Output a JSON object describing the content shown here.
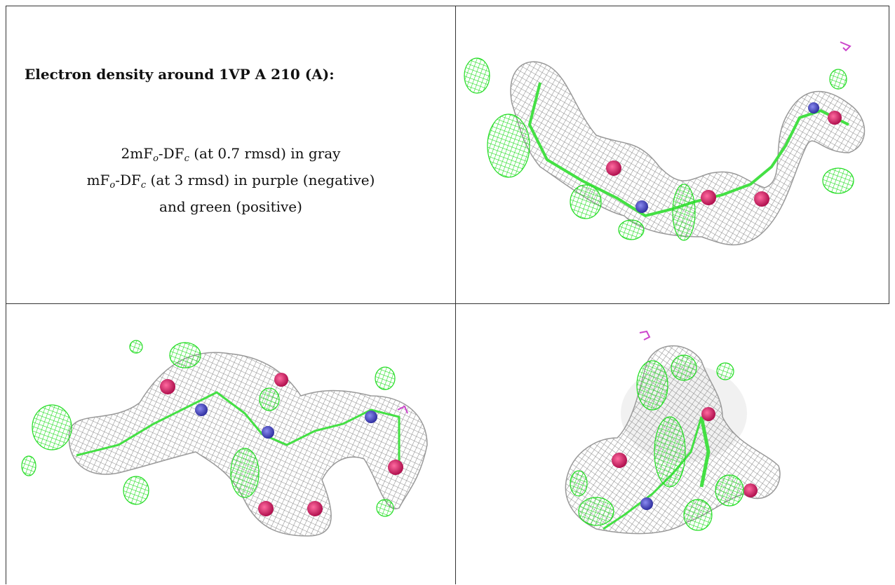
{
  "title": "Electron density around 1VP A 210 (A):",
  "legend": {
    "line1": {
      "prefix": "2mF",
      "sub1": "o",
      "mid": "-DF",
      "sub2": "c",
      "suffix": " (at 0.7 rmsd) in gray"
    },
    "line2": {
      "prefix": "mF",
      "sub1": "o",
      "mid": "-DF",
      "sub2": "c",
      "suffix": " (at 3 rmsd) in purple (negative)"
    },
    "line3": "and green (positive)"
  },
  "colors": {
    "density_2fofc": "#8a8a8a",
    "density_positive": "#22dd22",
    "density_negative": "#cc44cc",
    "oxygen": "#d0206a",
    "nitrogen": "#4a4ab8",
    "carbon": "#44e044",
    "border": "#333333"
  },
  "views": [
    {
      "name": "view-top-right"
    },
    {
      "name": "view-bottom-left"
    },
    {
      "name": "view-bottom-right"
    }
  ]
}
